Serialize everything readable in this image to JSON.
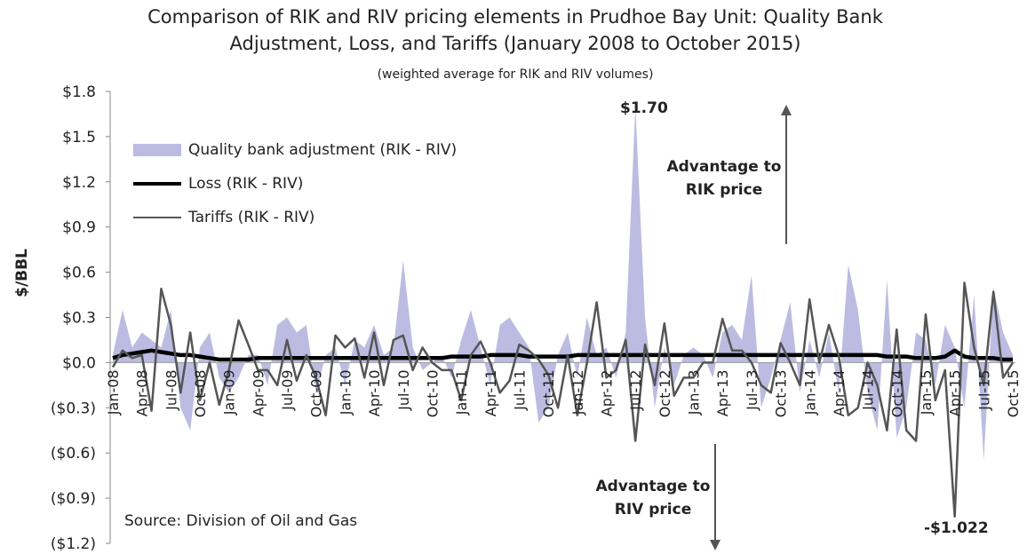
{
  "chart_data": {
    "type": "line",
    "title": "Comparison of RIK and RIV pricing elements in Prudhoe Bay Unit: Quality Bank Adjustment, Loss, and Tariffs (January 2008 to October 2015)",
    "subtitle": "(weighted average for RIK and RIV volumes)",
    "y_label": "$/BBL",
    "categories": [
      "Jan-08",
      null,
      null,
      "Apr-08",
      null,
      null,
      "Jul-08",
      null,
      null,
      "Oct-08",
      null,
      null,
      "Jan-09",
      null,
      null,
      "Apr-09",
      null,
      null,
      "Jul-09",
      null,
      null,
      "Oct-09",
      null,
      null,
      "Jan-10",
      null,
      null,
      "Apr-10",
      null,
      null,
      "Jul-10",
      null,
      null,
      "Oct-10",
      null,
      null,
      "Jan-11",
      null,
      null,
      "Apr-11",
      null,
      null,
      "Jul-11",
      null,
      null,
      "Oct-11",
      null,
      null,
      "Jan-12",
      null,
      null,
      "Apr-12",
      null,
      null,
      "Jul-12",
      null,
      null,
      "Oct-12",
      null,
      null,
      "Jan-13",
      null,
      null,
      "Apr-13",
      null,
      null,
      "Jul-13",
      null,
      null,
      "Oct-13",
      null,
      null,
      "Jan-14",
      null,
      null,
      "Apr-14",
      null,
      null,
      "Jul-14",
      null,
      null,
      "Oct-14",
      null,
      null,
      "Jan-15",
      null,
      null,
      "Apr-15",
      null,
      null,
      "Jul-15",
      null,
      null,
      "Oct-15"
    ],
    "series": [
      {
        "name": "Quality bank adjustment (RIK - RIV)",
        "kind": "area",
        "color": "#bcbce2",
        "values": [
          0.05,
          0.35,
          0.1,
          0.2,
          0.15,
          0.1,
          0.35,
          -0.3,
          -0.45,
          0.1,
          0.2,
          -0.1,
          -0.2,
          -0.1,
          0.05,
          0.05,
          -0.15,
          0.25,
          0.3,
          0.2,
          0.25,
          -0.2,
          0.05,
          0.1,
          -0.15,
          0.15,
          0.1,
          0.25,
          0.05,
          0.1,
          0.68,
          0.1,
          -0.05,
          0.0,
          0.05,
          -0.1,
          0.15,
          0.35,
          0.1,
          -0.15,
          0.25,
          0.3,
          0.2,
          0.1,
          -0.4,
          -0.3,
          0.05,
          0.2,
          -0.1,
          0.3,
          0.05,
          0.1,
          -0.1,
          0.2,
          1.7,
          0.3,
          -0.3,
          0.1,
          -0.15,
          0.05,
          0.1,
          0.05,
          -0.1,
          0.2,
          0.25,
          0.15,
          0.58,
          -0.3,
          -0.1,
          0.15,
          0.4,
          -0.2,
          0.15,
          -0.1,
          0.2,
          -0.2,
          0.65,
          0.35,
          -0.2,
          -0.45,
          0.55,
          -0.5,
          -0.3,
          0.2,
          0.15,
          -0.15,
          0.25,
          0.1,
          -0.3,
          0.45,
          -0.65,
          0.5,
          0.2,
          0.05
        ]
      },
      {
        "name": "Loss (RIK - RIV)",
        "kind": "line",
        "color": "#000000",
        "width": 4.5,
        "values": [
          0.03,
          0.05,
          0.06,
          0.07,
          0.08,
          0.07,
          0.06,
          0.05,
          0.05,
          0.04,
          0.03,
          0.02,
          0.02,
          0.02,
          0.02,
          0.03,
          0.03,
          0.03,
          0.03,
          0.03,
          0.03,
          0.03,
          0.03,
          0.03,
          0.03,
          0.03,
          0.03,
          0.03,
          0.03,
          0.03,
          0.03,
          0.03,
          0.03,
          0.03,
          0.03,
          0.04,
          0.04,
          0.04,
          0.04,
          0.05,
          0.05,
          0.05,
          0.05,
          0.04,
          0.04,
          0.04,
          0.04,
          0.04,
          0.05,
          0.05,
          0.05,
          0.05,
          0.05,
          0.05,
          0.05,
          0.05,
          0.05,
          0.05,
          0.05,
          0.05,
          0.05,
          0.05,
          0.05,
          0.05,
          0.05,
          0.05,
          0.05,
          0.05,
          0.05,
          0.05,
          0.05,
          0.05,
          0.05,
          0.05,
          0.05,
          0.05,
          0.05,
          0.05,
          0.05,
          0.05,
          0.04,
          0.04,
          0.04,
          0.03,
          0.03,
          0.03,
          0.04,
          0.08,
          0.04,
          0.03,
          0.03,
          0.03,
          0.02,
          0.02
        ]
      },
      {
        "name": "Tariffs (RIK - RIV)",
        "kind": "line",
        "color": "#555555",
        "width": 2.5,
        "values": [
          -0.03,
          0.08,
          0.03,
          0.05,
          -0.32,
          0.49,
          0.25,
          -0.2,
          0.2,
          -0.25,
          0.0,
          -0.28,
          -0.05,
          0.28,
          0.12,
          -0.05,
          -0.05,
          -0.15,
          0.15,
          -0.12,
          0.05,
          -0.1,
          -0.35,
          0.18,
          0.1,
          0.16,
          -0.1,
          0.2,
          -0.15,
          0.15,
          0.18,
          -0.05,
          0.1,
          0.0,
          -0.05,
          -0.05,
          -0.25,
          0.05,
          0.14,
          0.0,
          -0.2,
          -0.12,
          0.12,
          0.08,
          0.02,
          -0.08,
          -0.3,
          0.05,
          -0.35,
          0.0,
          0.4,
          -0.1,
          -0.05,
          0.15,
          -0.52,
          0.12,
          -0.15,
          0.26,
          -0.22,
          -0.1,
          -0.1,
          0.0,
          0.0,
          0.29,
          0.08,
          0.08,
          0.0,
          -0.15,
          -0.2,
          0.13,
          0.0,
          -0.15,
          0.42,
          0.0,
          0.25,
          0.05,
          -0.35,
          -0.3,
          0.0,
          -0.15,
          -0.45,
          0.22,
          -0.45,
          -0.52,
          0.32,
          -0.25,
          -0.05,
          -1.022,
          0.53,
          0.1,
          -0.15,
          0.47,
          -0.1,
          0.0
        ]
      }
    ],
    "ylim": [
      -1.2,
      1.8
    ],
    "yticks": [
      {
        "value": -1.2,
        "label": "($1.2)"
      },
      {
        "value": -0.9,
        "label": "($0.9)"
      },
      {
        "value": -0.6,
        "label": "($0.6)"
      },
      {
        "value": -0.3,
        "label": "($0.3)"
      },
      {
        "value": 0,
        "label": "$0.0"
      },
      {
        "value": 0.3,
        "label": "$0.3"
      },
      {
        "value": 0.6,
        "label": "$0.6"
      },
      {
        "value": 0.9,
        "label": "$0.9"
      },
      {
        "value": 1.2,
        "label": "$1.2"
      },
      {
        "value": 1.5,
        "label": "$1.5"
      },
      {
        "value": 1.8,
        "label": "$1.8"
      }
    ],
    "grid": false,
    "legend": "upper left",
    "annotations": [
      "$1.70",
      "Advantage to RIK price",
      "Advantage to RIV price",
      "-$1.022",
      "Source: Division of Oil and Gas"
    ]
  }
}
